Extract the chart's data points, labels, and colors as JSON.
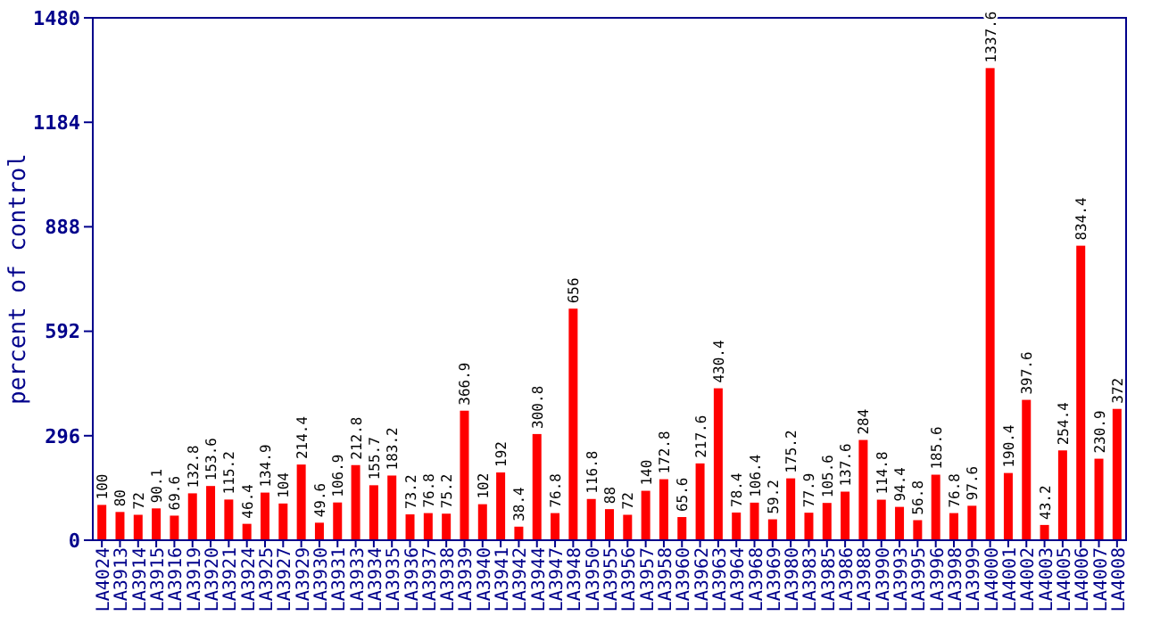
{
  "chart_data": {
    "type": "bar",
    "ylabel": "percent of control",
    "categories": [
      "LA4024",
      "LA3913",
      "LA3914",
      "LA3915",
      "LA3916",
      "LA3919",
      "LA3920",
      "LA3921",
      "LA3924",
      "LA3925",
      "LA3927",
      "LA3929",
      "LA3930",
      "LA3931",
      "LA3933",
      "LA3934",
      "LA3935",
      "LA3936",
      "LA3937",
      "LA3938",
      "LA3939",
      "LA3940",
      "LA3941",
      "LA3942",
      "LA3944",
      "LA3947",
      "LA3948",
      "LA3950",
      "LA3955",
      "LA3956",
      "LA3957",
      "LA3958",
      "LA3960",
      "LA3962",
      "LA3963",
      "LA3964",
      "LA3968",
      "LA3969",
      "LA3980",
      "LA3983",
      "LA3985",
      "LA3986",
      "LA3988",
      "LA3990",
      "LA3993",
      "LA3995",
      "LA3996",
      "LA3998",
      "LA3999",
      "LA4000",
      "LA4001",
      "LA4002",
      "LA4003",
      "LA4005",
      "LA4006",
      "LA4007",
      "LA4008"
    ],
    "values": [
      100,
      80,
      72,
      90.1,
      69.6,
      132.8,
      153.6,
      115.2,
      46.4,
      134.9,
      104,
      214.4,
      49.6,
      106.9,
      212.8,
      155.7,
      183.2,
      73.2,
      76.8,
      75.2,
      366.9,
      102,
      192,
      38.4,
      300.8,
      76.8,
      656,
      116.8,
      88,
      72,
      140,
      172.8,
      65.6,
      217.6,
      430.4,
      78.4,
      106.4,
      59.2,
      175.2,
      77.9,
      105.6,
      137.6,
      284,
      114.8,
      94.4,
      56.8,
      185.6,
      76.8,
      97.6,
      1337.6,
      190.4,
      397.6,
      43.2,
      254.4,
      834.4,
      230.9,
      372
    ],
    "color": "#ff0000",
    "data_labels": true,
    "ylim": [
      0,
      1480
    ],
    "yticks": [
      0,
      296,
      592,
      888,
      1184,
      1480
    ],
    "grid": false
  }
}
